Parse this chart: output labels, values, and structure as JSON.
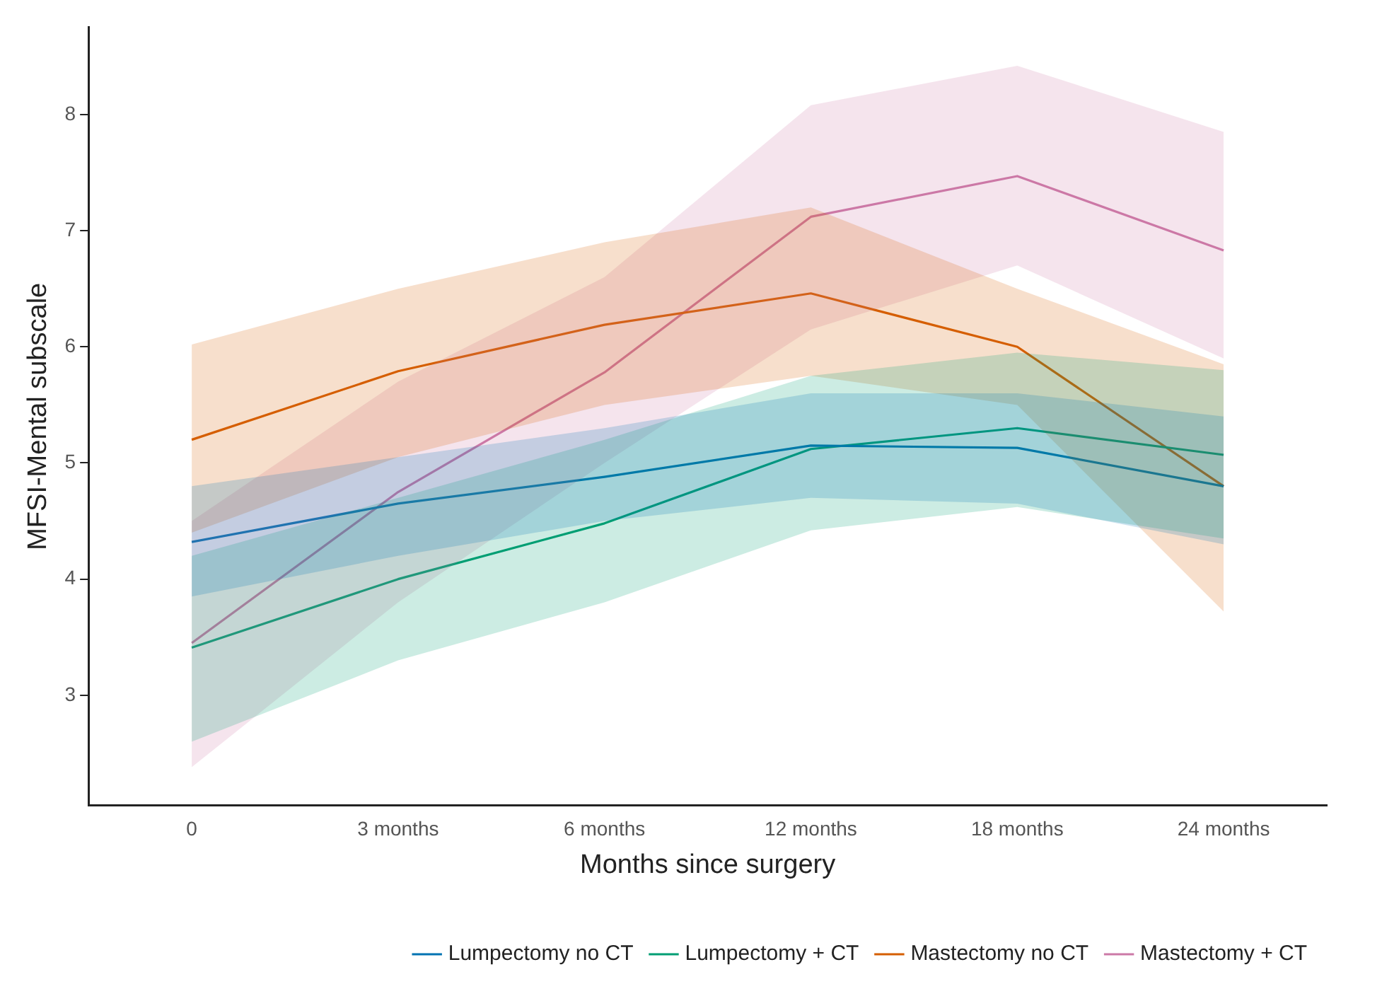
{
  "chart_data": {
    "type": "line",
    "xlabel": "Months since surgery",
    "ylabel": "MFSI-Mental subscale",
    "categories": [
      "0",
      "3 months",
      "6 months",
      "12 months",
      "18 months",
      "24 months"
    ],
    "ylim": [
      2.05,
      8.75
    ],
    "yticks": [
      3,
      4,
      5,
      6,
      7,
      8
    ],
    "grid": false,
    "legend": "bottom",
    "marker": "none",
    "series": [
      {
        "name": "Lumpectomy no CT",
        "color": "#0072b2",
        "values": [
          4.32,
          4.65,
          4.88,
          5.15,
          5.13,
          4.8
        ],
        "lower": [
          3.85,
          4.2,
          4.5,
          4.7,
          4.65,
          4.3
        ],
        "upper": [
          4.8,
          5.05,
          5.3,
          5.6,
          5.6,
          5.4
        ]
      },
      {
        "name": "Lumpectomy + CT",
        "color": "#009e73",
        "values": [
          3.41,
          4.0,
          4.48,
          5.12,
          5.3,
          5.07
        ],
        "lower": [
          2.6,
          3.3,
          3.8,
          4.42,
          4.62,
          4.35
        ],
        "upper": [
          4.2,
          4.7,
          5.2,
          5.75,
          5.95,
          5.8
        ]
      },
      {
        "name": "Mastectomy no CT",
        "color": "#d55e00",
        "values": [
          5.2,
          5.79,
          6.19,
          6.46,
          6.0,
          4.8
        ],
        "lower": [
          4.4,
          5.05,
          5.5,
          5.75,
          5.5,
          3.72
        ],
        "upper": [
          6.02,
          6.5,
          6.9,
          7.2,
          6.5,
          5.85
        ]
      },
      {
        "name": "Mastectomy + CT",
        "color": "#cc79a7",
        "values": [
          3.45,
          4.75,
          5.78,
          7.12,
          7.47,
          6.83
        ],
        "lower": [
          2.38,
          3.8,
          5.0,
          6.15,
          6.7,
          5.9
        ],
        "upper": [
          4.5,
          5.7,
          6.6,
          8.08,
          8.42,
          7.85
        ]
      }
    ]
  }
}
